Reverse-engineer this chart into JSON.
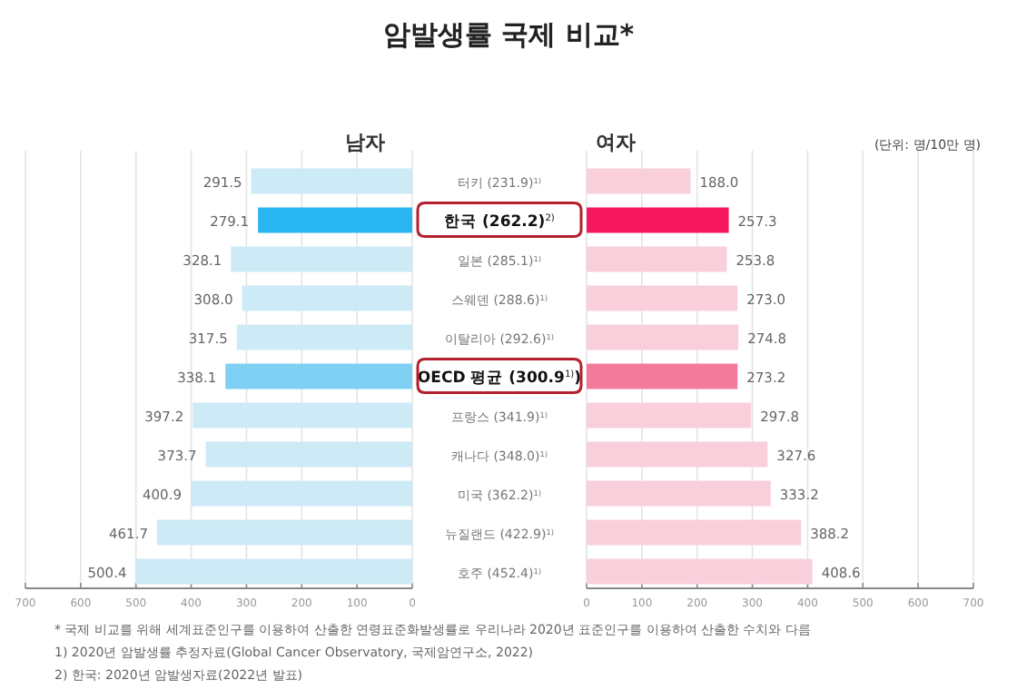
{
  "chart_data": [
    {
      "type": "bar",
      "orientation": "horizontal",
      "title": "암발생률 국제 비교*",
      "subtitle": "남자",
      "categories": [
        "터키 (231.9)$^{1)}$",
        "**한국 (262.2)**$^{2)}$",
        "일본 (285.1)$^{1)}$",
        "스웨덴 (288.6)$^{1)}$",
        "이탈리아 (292.6)$^{1)}$",
        "**OECD 평균 (300.9**$^{1)}$**)**",
        "프랑스 (341.9)$^{1)}$",
        "캐나다 (348.0)$^{1)}$",
        "미국 (362.2)$^{1)}$",
        "뉴질랜드 (422.9)$^{1)}$",
        "호주 (452.4)$^{1)}$"
      ],
      "values": [
        291.5,
        279.1,
        328.1,
        308.0,
        317.5,
        338.1,
        397.2,
        373.7,
        400.9,
        461.7,
        500.4
      ],
      "value_labels": [
        "291.5",
        "279.1",
        "328.1",
        "308.0",
        "317.5",
        "338.1",
        "397.2",
        "373.7",
        "400.9",
        "461.7",
        "500.4"
      ],
      "colors": [
        "#cdeaf7",
        "#29b6f0",
        "#cdeaf7",
        "#cdeaf7",
        "#cdeaf7",
        "#7fd0f3",
        "#cdeaf7",
        "#cdeaf7",
        "#cdeaf7",
        "#cdeaf7",
        "#cdeaf7"
      ],
      "xlim": [
        700,
        0
      ],
      "xticks": [
        700,
        600,
        500,
        400,
        300,
        200,
        100,
        0
      ],
      "grid": "x",
      "annotations": [
        "* 국제 비교를 위해 세계표준인구를 이용하여 산출한 연령표준화발생률로 우리나라 2020년 표준인구를 이용하여 산출한 수치와 다름",
        "1) 2020년 암발생률 추정자료(Global Cancer Observatory, 국제암연구소, 2022)",
        "2) 한국: 2020년 암발생자료(2022년 발표)"
      ]
    },
    {
      "type": "bar",
      "orientation": "horizontal",
      "title": "여자",
      "categories": [
        null,
        null,
        null,
        null,
        null,
        null,
        null,
        null,
        null,
        null,
        null
      ],
      "values": [
        188.0,
        257.3,
        253.8,
        273.0,
        274.8,
        273.2,
        297.8,
        327.6,
        333.2,
        388.2,
        408.6
      ],
      "value_labels": [
        "188.0",
        "257.3",
        "253.8",
        "273.0",
        "274.8",
        "273.2",
        "297.8",
        "327.6",
        "333.2",
        "388.2",
        "408.6"
      ],
      "colors": [
        "#f9cfdc",
        "#f5185f",
        "#f9cfdc",
        "#f9cfdc",
        "#f9cfdc",
        "#f47a9c",
        "#f9cfdc",
        "#f9cfdc",
        "#f9cfdc",
        "#f9cfdc",
        "#f9cfdc"
      ],
      "xlim": [
        0,
        700
      ],
      "xticks": [
        0,
        100,
        200,
        300,
        400,
        500,
        600,
        700
      ],
      "grid": "x",
      "tick_labels": "x",
      "annotations": [
        "(단위: 명/10만 명)"
      ]
    }
  ]
}
